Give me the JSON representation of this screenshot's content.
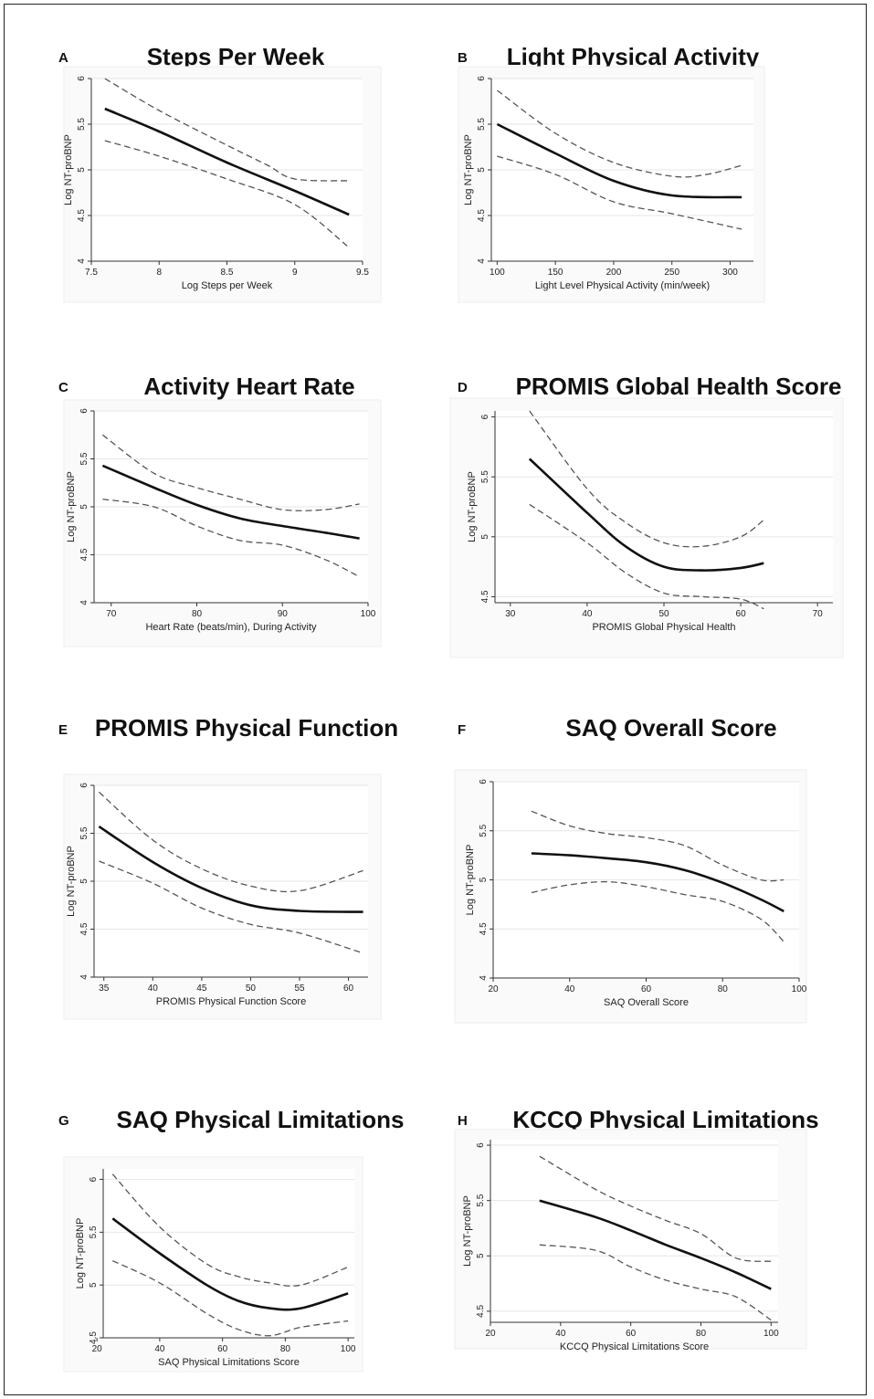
{
  "chart_data": [
    {
      "panel": "A",
      "type": "line",
      "title": "Steps Per Week",
      "xlabel": "Log Steps per Week",
      "ylabel": "Log NT-proBNP",
      "xlim": [
        7.5,
        9.5
      ],
      "ylim": [
        4,
        6
      ],
      "xticks": [
        "7.5",
        "8",
        "8.5",
        "9",
        "9.5"
      ],
      "yticks": [
        "4",
        "4.5",
        "5",
        "5.5",
        "6"
      ],
      "grid": true,
      "series": [
        {
          "role": "fit",
          "x": [
            7.6,
            8.0,
            8.5,
            9.0,
            9.4
          ],
          "y": [
            5.67,
            5.42,
            5.08,
            4.77,
            4.51
          ]
        },
        {
          "role": "upper",
          "x": [
            7.6,
            8.0,
            8.5,
            8.8,
            9.0,
            9.4
          ],
          "y": [
            6.0,
            5.65,
            5.27,
            5.05,
            4.9,
            4.88
          ]
        },
        {
          "role": "lower",
          "x": [
            7.6,
            8.0,
            8.5,
            9.0,
            9.4
          ],
          "y": [
            5.32,
            5.15,
            4.9,
            4.62,
            4.15
          ]
        }
      ]
    },
    {
      "panel": "B",
      "type": "line",
      "title": "Light Physical Activity",
      "xlabel": "Light Level Physical Activity (min/week)",
      "ylabel": "Log NT-proBNP",
      "xlim": [
        95,
        320
      ],
      "ylim": [
        4,
        6
      ],
      "xticks": [
        "100",
        "150",
        "200",
        "250",
        "300"
      ],
      "yticks": [
        "4",
        "4.5",
        "5",
        "5.5",
        "6"
      ],
      "grid": true,
      "series": [
        {
          "role": "fit",
          "x": [
            100,
            150,
            200,
            250,
            310
          ],
          "y": [
            5.5,
            5.18,
            4.88,
            4.72,
            4.7
          ]
        },
        {
          "role": "upper",
          "x": [
            100,
            150,
            200,
            250,
            280,
            310
          ],
          "y": [
            5.87,
            5.4,
            5.08,
            4.93,
            4.95,
            5.05
          ]
        },
        {
          "role": "lower",
          "x": [
            100,
            150,
            200,
            250,
            310
          ],
          "y": [
            5.15,
            4.95,
            4.65,
            4.52,
            4.35
          ]
        }
      ]
    },
    {
      "panel": "C",
      "type": "line",
      "title": "Activity Heart Rate",
      "xlabel": "Heart Rate (beats/min), During Activity",
      "ylabel": "Log NT-proBNP",
      "xlim": [
        68,
        100
      ],
      "ylim": [
        4,
        6
      ],
      "xticks": [
        "70",
        "80",
        "90",
        "100"
      ],
      "yticks": [
        "4",
        "4.5",
        "5",
        "5.5",
        "6"
      ],
      "grid": true,
      "series": [
        {
          "role": "fit",
          "x": [
            69,
            75,
            80,
            85,
            90,
            95,
            99
          ],
          "y": [
            5.43,
            5.2,
            5.02,
            4.88,
            4.8,
            4.73,
            4.67
          ]
        },
        {
          "role": "upper",
          "x": [
            69,
            75,
            80,
            85,
            90,
            95,
            99
          ],
          "y": [
            5.75,
            5.35,
            5.2,
            5.08,
            4.97,
            4.97,
            5.03
          ]
        },
        {
          "role": "lower",
          "x": [
            69,
            75,
            80,
            85,
            90,
            95,
            99
          ],
          "y": [
            5.08,
            5.0,
            4.8,
            4.65,
            4.6,
            4.45,
            4.27
          ]
        }
      ]
    },
    {
      "panel": "D",
      "type": "line",
      "title": "PROMIS Global Health Score",
      "xlabel": "PROMIS Global Physical Health",
      "ylabel": "Log NT-proBNP",
      "xlim": [
        28,
        72
      ],
      "ylim": [
        4.45,
        6.05
      ],
      "xticks": [
        "30",
        "40",
        "50",
        "60",
        "70"
      ],
      "yticks": [
        "4.5",
        "5",
        "5.5",
        "6"
      ],
      "grid": true,
      "series": [
        {
          "role": "fit",
          "x": [
            32.5,
            40,
            45,
            50,
            55,
            60,
            63
          ],
          "y": [
            5.65,
            5.2,
            4.92,
            4.75,
            4.72,
            4.74,
            4.78
          ]
        },
        {
          "role": "upper",
          "x": [
            32.5,
            40,
            45,
            50,
            55,
            60,
            63
          ],
          "y": [
            6.05,
            5.4,
            5.12,
            4.95,
            4.92,
            5.0,
            5.14
          ]
        },
        {
          "role": "lower",
          "x": [
            32.5,
            40,
            45,
            50,
            55,
            60,
            63
          ],
          "y": [
            5.27,
            4.95,
            4.7,
            4.53,
            4.5,
            4.48,
            4.4
          ]
        }
      ]
    },
    {
      "panel": "E",
      "type": "line",
      "title": "PROMIS Physical Function",
      "xlabel": "PROMIS Physical Function Score",
      "ylabel": "Log NT-proBNP",
      "xlim": [
        34,
        62
      ],
      "ylim": [
        4,
        6
      ],
      "xticks": [
        "35",
        "40",
        "45",
        "50",
        "55",
        "60"
      ],
      "yticks": [
        "4",
        "4.5",
        "5",
        "5.5",
        "6"
      ],
      "grid": true,
      "series": [
        {
          "role": "fit",
          "x": [
            34.5,
            40,
            45,
            50,
            55,
            61.5
          ],
          "y": [
            5.57,
            5.2,
            4.93,
            4.75,
            4.69,
            4.68
          ]
        },
        {
          "role": "upper",
          "x": [
            34.5,
            40,
            45,
            50,
            55,
            61.5
          ],
          "y": [
            5.93,
            5.43,
            5.13,
            4.95,
            4.9,
            5.11
          ]
        },
        {
          "role": "lower",
          "x": [
            34.5,
            40,
            45,
            50,
            55,
            61.5
          ],
          "y": [
            5.21,
            4.98,
            4.72,
            4.55,
            4.46,
            4.25
          ]
        }
      ]
    },
    {
      "panel": "F",
      "type": "line",
      "title": "SAQ Overall Score",
      "xlabel": "SAQ Overall Score",
      "ylabel": "Log NT-proBNP",
      "xlim": [
        20,
        100
      ],
      "ylim": [
        4,
        6
      ],
      "xticks": [
        "20",
        "40",
        "60",
        "80",
        "100"
      ],
      "yticks": [
        "4",
        "4.5",
        "5",
        "5.5",
        "6"
      ],
      "grid": true,
      "series": [
        {
          "role": "fit",
          "x": [
            30,
            40,
            50,
            60,
            70,
            80,
            90,
            96
          ],
          "y": [
            5.27,
            5.25,
            5.22,
            5.18,
            5.1,
            4.97,
            4.8,
            4.68
          ]
        },
        {
          "role": "upper",
          "x": [
            30,
            40,
            50,
            60,
            70,
            80,
            90,
            96
          ],
          "y": [
            5.7,
            5.55,
            5.47,
            5.43,
            5.35,
            5.15,
            5.0,
            5.0
          ]
        },
        {
          "role": "lower",
          "x": [
            30,
            40,
            50,
            60,
            70,
            80,
            90,
            96
          ],
          "y": [
            4.87,
            4.95,
            4.98,
            4.93,
            4.85,
            4.78,
            4.6,
            4.37
          ]
        }
      ]
    },
    {
      "panel": "G",
      "type": "line",
      "title": "SAQ Physical Limitations",
      "xlabel": "SAQ Physical Limitations Score",
      "ylabel": "Log NT-proBNP",
      "xlim": [
        22,
        102
      ],
      "ylim": [
        4.5,
        6.1
      ],
      "xticks": [
        "20",
        "40",
        "60",
        "80",
        "100"
      ],
      "yticks": [
        "4.5",
        "5",
        "5.5",
        "6"
      ],
      "grid": true,
      "series": [
        {
          "role": "fit",
          "x": [
            25,
            40,
            55,
            65,
            75,
            85,
            100
          ],
          "y": [
            5.63,
            5.3,
            5.0,
            4.85,
            4.78,
            4.78,
            4.92
          ]
        },
        {
          "role": "upper",
          "x": [
            25,
            40,
            55,
            65,
            75,
            85,
            100
          ],
          "y": [
            6.05,
            5.55,
            5.2,
            5.08,
            5.02,
            5.0,
            5.17
          ]
        },
        {
          "role": "lower",
          "x": [
            25,
            40,
            55,
            65,
            75,
            85,
            100
          ],
          "y": [
            5.23,
            5.02,
            4.73,
            4.58,
            4.52,
            4.6,
            4.66
          ]
        }
      ]
    },
    {
      "panel": "H",
      "type": "line",
      "title": "KCCQ Physical Limitations",
      "xlabel": "KCCQ Physical Limitations Score",
      "ylabel": "Log NT-proBNP",
      "xlim": [
        20,
        102
      ],
      "ylim": [
        4.4,
        6.05
      ],
      "xticks": [
        "20",
        "40",
        "60",
        "80",
        "100"
      ],
      "yticks": [
        "4.5",
        "5",
        "5.5",
        "6"
      ],
      "grid": true,
      "series": [
        {
          "role": "fit",
          "x": [
            34,
            50,
            60,
            70,
            80,
            90,
            100
          ],
          "y": [
            5.5,
            5.35,
            5.23,
            5.1,
            4.98,
            4.85,
            4.7
          ]
        },
        {
          "role": "upper",
          "x": [
            34,
            50,
            60,
            70,
            80,
            90,
            100
          ],
          "y": [
            5.9,
            5.6,
            5.45,
            5.32,
            5.2,
            4.98,
            4.95
          ]
        },
        {
          "role": "lower",
          "x": [
            34,
            50,
            60,
            70,
            80,
            90,
            100
          ],
          "y": [
            5.1,
            5.05,
            4.9,
            4.78,
            4.7,
            4.63,
            4.42
          ]
        }
      ]
    }
  ]
}
